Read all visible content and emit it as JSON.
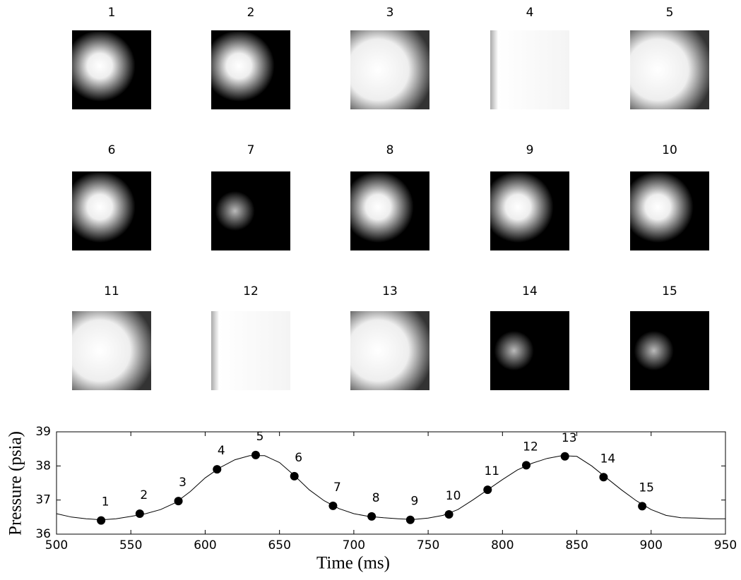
{
  "frames": {
    "labels": [
      "1",
      "2",
      "3",
      "4",
      "5",
      "6",
      "7",
      "8",
      "9",
      "10",
      "11",
      "12",
      "13",
      "14",
      "15"
    ]
  },
  "chart_data": {
    "type": "line",
    "xlabel": "Time (ms)",
    "ylabel": "Pressure (psia)",
    "xlim": [
      500,
      950
    ],
    "xticks": [
      500,
      550,
      600,
      650,
      700,
      750,
      800,
      850,
      900,
      950
    ],
    "ylim": [
      36,
      39
    ],
    "yticks": [
      36,
      37,
      38,
      39
    ],
    "line": {
      "color": "#000000",
      "x": [
        500,
        510,
        520,
        530,
        540,
        550,
        560,
        570,
        580,
        590,
        600,
        610,
        620,
        630,
        640,
        650,
        660,
        670,
        680,
        690,
        700,
        710,
        720,
        730,
        740,
        750,
        760,
        770,
        780,
        790,
        800,
        810,
        820,
        830,
        840,
        850,
        860,
        870,
        880,
        890,
        900,
        910,
        920,
        930,
        940,
        950
      ],
      "values": [
        36.6,
        36.5,
        36.45,
        36.42,
        36.45,
        36.52,
        36.6,
        36.72,
        36.92,
        37.25,
        37.65,
        37.95,
        38.18,
        38.3,
        38.3,
        38.1,
        37.72,
        37.3,
        36.98,
        36.75,
        36.6,
        36.52,
        36.48,
        36.45,
        36.43,
        36.47,
        36.55,
        36.72,
        37.0,
        37.3,
        37.6,
        37.88,
        38.08,
        38.22,
        38.3,
        38.28,
        38.0,
        37.65,
        37.3,
        36.98,
        36.72,
        36.55,
        36.48,
        36.47,
        36.45,
        36.45
      ]
    },
    "points": {
      "color": "#000000",
      "x": [
        530,
        556,
        582,
        608,
        634,
        660,
        686,
        712,
        738,
        764,
        790,
        816,
        842,
        868,
        894
      ],
      "values": [
        36.4,
        36.6,
        36.97,
        37.9,
        38.32,
        37.7,
        36.83,
        36.52,
        36.42,
        36.58,
        37.3,
        38.02,
        38.28,
        37.67,
        36.82
      ],
      "labels": [
        "1",
        "2",
        "3",
        "4",
        "5",
        "6",
        "7",
        "8",
        "9",
        "10",
        "11",
        "12",
        "13",
        "14",
        "15"
      ]
    }
  }
}
